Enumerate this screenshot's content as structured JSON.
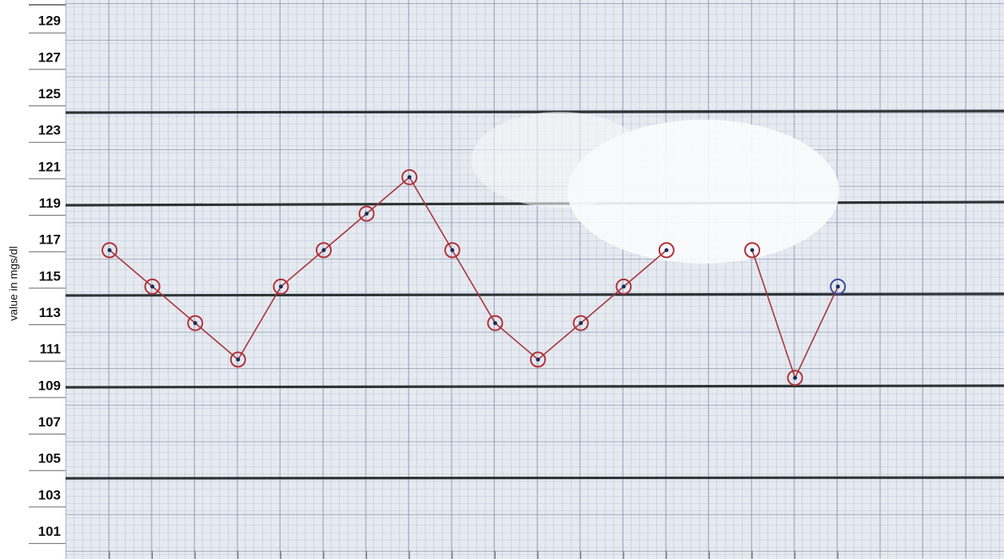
{
  "chart_data": {
    "type": "line",
    "y_label": "value in mgs/dl",
    "categories": [
      null,
      null,
      null,
      null,
      null,
      null,
      null,
      null,
      null,
      null,
      null,
      null,
      null,
      null,
      null,
      null,
      null,
      null
    ],
    "series": [
      {
        "color": "#a8343a",
        "marker_color": "#b03038",
        "last_marker_color": "#3a4aa0",
        "values": [
          117,
          115,
          113,
          111,
          115,
          117,
          119,
          121,
          117,
          113,
          111,
          113,
          115,
          117,
          null,
          117,
          110,
          115
        ]
      }
    ],
    "ylim": [
      100.5,
      130.5
    ],
    "yticks": [
      101,
      103,
      105,
      107,
      109,
      111,
      113,
      115,
      117,
      119,
      121,
      123,
      125,
      127,
      129
    ]
  }
}
